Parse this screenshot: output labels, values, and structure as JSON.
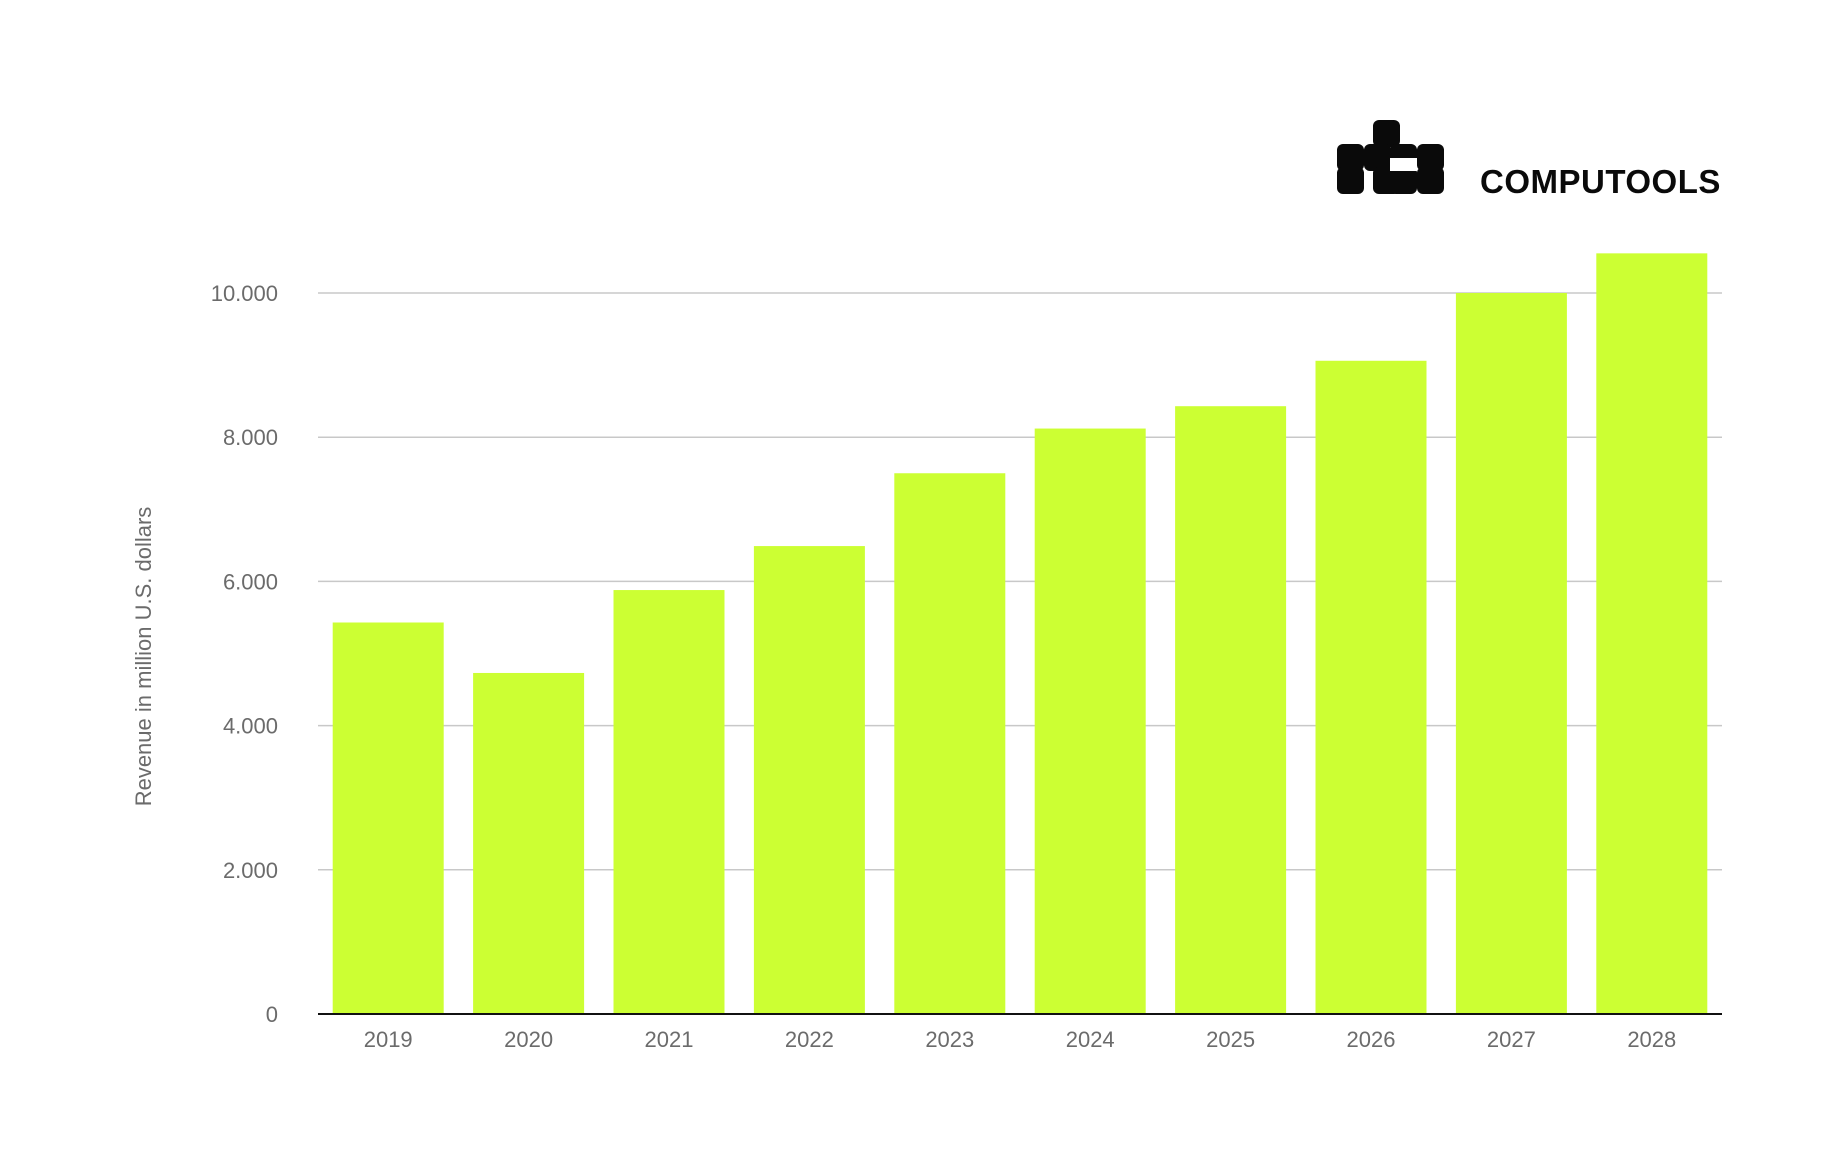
{
  "brand": {
    "name": "COMPUTOOLS",
    "icon": "computools-logo-icon"
  },
  "chart_data": {
    "type": "bar",
    "title": "",
    "xlabel": "",
    "ylabel": "Revenue in million U.S. dollars",
    "categories": [
      "2019",
      "2020",
      "2021",
      "2022",
      "2023",
      "2024",
      "2025",
      "2026",
      "2027",
      "2028"
    ],
    "values": [
      5430,
      4730,
      5880,
      6490,
      7500,
      8120,
      8430,
      9060,
      10000,
      10550
    ],
    "ylim": [
      0,
      10000
    ],
    "yticks": [
      0,
      2000,
      4000,
      6000,
      8000,
      10000
    ],
    "ytick_labels": [
      "0",
      "2.000",
      "4.000",
      "6.000",
      "8.000",
      "10.000"
    ],
    "grid": true,
    "legend": "none",
    "colors": {
      "bar": "#ccff33",
      "grid": "#c8c8c8",
      "axis": "#111111",
      "text": "#6b6b6b"
    }
  }
}
